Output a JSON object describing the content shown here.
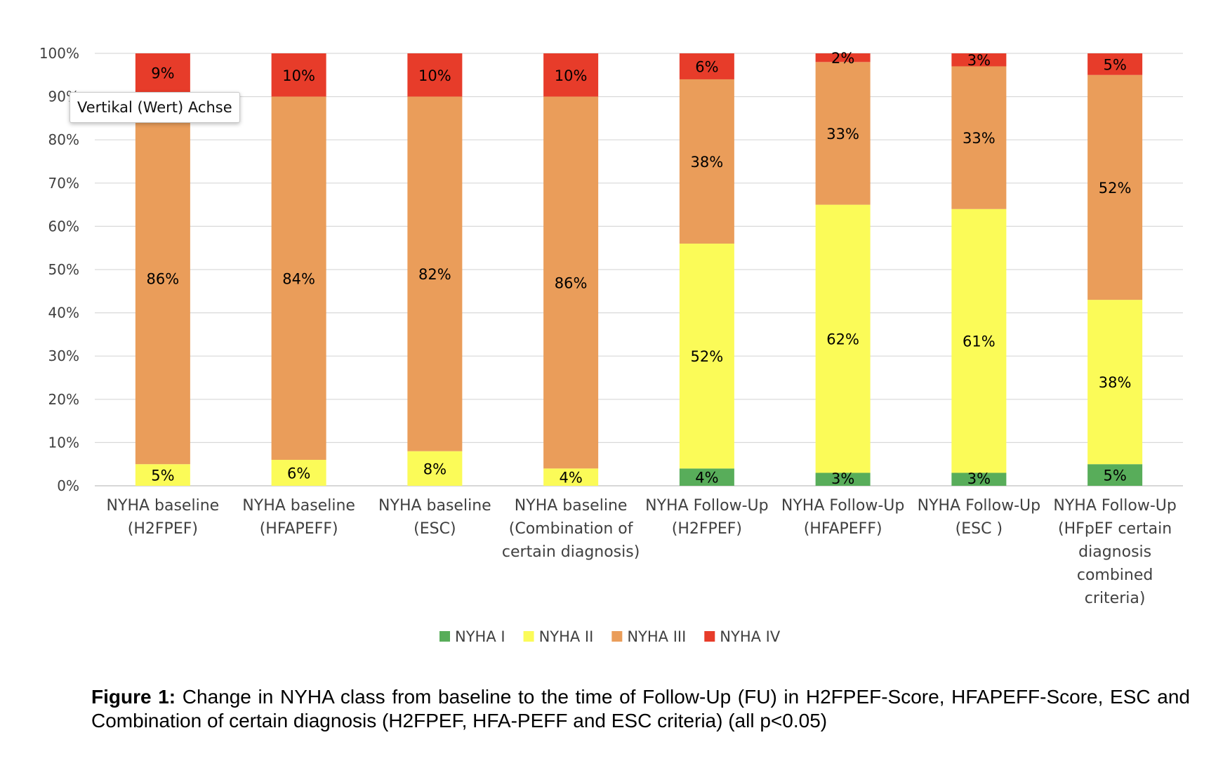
{
  "chart_data": {
    "type": "bar",
    "stacked": "percent",
    "categories": [
      [
        "NYHA baseline",
        "(H2FPEF)"
      ],
      [
        "NYHA baseline",
        "(HFAPEFF)"
      ],
      [
        "NYHA baseline",
        "(ESC)"
      ],
      [
        "NYHA baseline",
        "(Combination of",
        "certain diagnosis)"
      ],
      [
        "NYHA Follow-Up",
        "(H2FPEF)"
      ],
      [
        "NYHA Follow-Up",
        "(HFAPEFF)"
      ],
      [
        "NYHA Follow-Up",
        "(ESC )"
      ],
      [
        "NYHA Follow-Up",
        "(HFpEF certain",
        "diagnosis",
        "combined",
        "criteria)"
      ]
    ],
    "series": [
      {
        "name": "NYHA I",
        "color": "#58ad5a",
        "values": [
          0,
          0,
          0,
          0,
          4,
          3,
          3,
          5
        ],
        "labels": [
          "",
          "",
          "",
          "",
          "4%",
          "3%",
          "3%",
          "5%"
        ]
      },
      {
        "name": "NYHA II",
        "color": "#fbfb58",
        "values": [
          5,
          6,
          8,
          4,
          52,
          62,
          61,
          38
        ],
        "labels": [
          "5%",
          "6%",
          "8%",
          "4%",
          "52%",
          "62%",
          "61%",
          "38%"
        ]
      },
      {
        "name": "NYHA III",
        "color": "#ea9d5a",
        "values": [
          86,
          84,
          82,
          86,
          38,
          33,
          33,
          52
        ],
        "labels": [
          "86%",
          "84%",
          "82%",
          "86%",
          "38%",
          "33%",
          "33%",
          "52%"
        ]
      },
      {
        "name": "NYHA IV",
        "color": "#e73c2a",
        "values": [
          9,
          10,
          10,
          10,
          6,
          2,
          3,
          5
        ],
        "labels": [
          "9%",
          "10%",
          "10%",
          "10%",
          "6%",
          "2%",
          "3%",
          "5%"
        ]
      }
    ],
    "yticks": [
      "0%",
      "10%",
      "20%",
      "30%",
      "40%",
      "50%",
      "60%",
      "70%",
      "80%",
      "90%",
      "100%"
    ],
    "ylim": [
      0,
      100
    ],
    "grid": true,
    "legend_position": "bottom",
    "title": "",
    "xlabel": "",
    "ylabel": ""
  },
  "tooltip": {
    "text": "Vertikal (Wert) Achse"
  },
  "caption": {
    "label": "Figure 1:",
    "text": " Change in NYHA class from baseline to the time of Follow-Up (FU) in H2FPEF-Score, HFAPEFF-Score, ESC and Combination of certain diagnosis (H2FPEF, HFA-PEFF and ESC criteria) (all p<0.05)"
  }
}
